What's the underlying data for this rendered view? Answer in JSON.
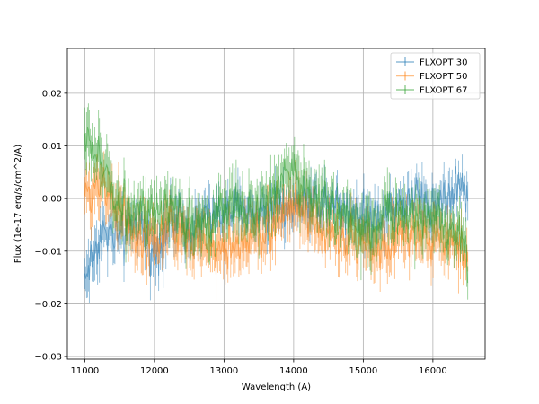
{
  "chart_data": {
    "type": "line",
    "title": "",
    "xlabel": "Wavelength (A)",
    "ylabel": "Flux (1e-17 erg/s/cm^2/A)",
    "xlim": [
      10750,
      16750
    ],
    "ylim": [
      -0.0305,
      0.0285
    ],
    "xticks": [
      11000,
      12000,
      13000,
      14000,
      15000,
      16000
    ],
    "yticks": [
      -0.03,
      -0.02,
      -0.01,
      0.0,
      0.01,
      0.02
    ],
    "xtick_labels": [
      "11000",
      "12000",
      "13000",
      "14000",
      "15000",
      "16000"
    ],
    "ytick_labels": [
      "−0.03",
      "−0.02",
      "−0.01",
      "0.00",
      "0.01",
      "0.02"
    ],
    "grid": true,
    "legend_position": "top-right",
    "errorbars": true,
    "series": [
      {
        "name": "FLXOPT 30",
        "color": "#1f77b4",
        "x": [
          11000,
          11250,
          11500,
          11750,
          12000,
          12250,
          12500,
          12750,
          13000,
          13250,
          13500,
          13750,
          14000,
          14250,
          14500,
          14750,
          15000,
          15250,
          15500,
          15750,
          16000,
          16250,
          16500
        ],
        "y": [
          -0.015,
          -0.006,
          -0.008,
          -0.005,
          -0.01,
          -0.004,
          -0.005,
          -0.004,
          -0.003,
          -0.002,
          -0.003,
          -0.001,
          -0.001,
          -0.001,
          0.0,
          -0.002,
          -0.003,
          -0.003,
          -0.001,
          0.0,
          -0.001,
          0.001,
          0.002
        ],
        "err": [
          0.005,
          0.005,
          0.004,
          0.004,
          0.005,
          0.004,
          0.004,
          0.004,
          0.004,
          0.004,
          0.004,
          0.004,
          0.004,
          0.004,
          0.004,
          0.004,
          0.004,
          0.004,
          0.004,
          0.004,
          0.004,
          0.004,
          0.004
        ]
      },
      {
        "name": "FLXOPT 50",
        "color": "#ff7f0e",
        "x": [
          11000,
          11250,
          11500,
          11750,
          12000,
          12250,
          12500,
          12750,
          13000,
          13250,
          13500,
          13750,
          14000,
          14250,
          14500,
          14750,
          15000,
          15250,
          15500,
          15750,
          16000,
          16250,
          16500
        ],
        "y": [
          0.0,
          0.004,
          -0.002,
          -0.008,
          -0.008,
          -0.005,
          -0.008,
          -0.009,
          -0.01,
          -0.008,
          -0.007,
          -0.005,
          0.0,
          -0.004,
          -0.007,
          -0.008,
          -0.009,
          -0.01,
          -0.007,
          -0.008,
          -0.007,
          -0.008,
          -0.01
        ],
        "err": [
          0.005,
          0.005,
          0.005,
          0.005,
          0.005,
          0.005,
          0.005,
          0.005,
          0.005,
          0.005,
          0.005,
          0.005,
          0.005,
          0.005,
          0.005,
          0.005,
          0.005,
          0.005,
          0.005,
          0.005,
          0.005,
          0.005,
          0.005
        ]
      },
      {
        "name": "FLXOPT 67",
        "color": "#2ca02c",
        "x": [
          11000,
          11250,
          11500,
          11750,
          12000,
          12250,
          12500,
          12750,
          13000,
          13250,
          13500,
          13750,
          14000,
          14250,
          14500,
          14750,
          15000,
          15250,
          15500,
          15750,
          16000,
          16250,
          16500
        ],
        "y": [
          0.012,
          0.006,
          -0.001,
          -0.002,
          -0.004,
          -0.003,
          -0.004,
          -0.005,
          -0.003,
          -0.001,
          -0.003,
          0.002,
          0.006,
          0.0,
          -0.002,
          -0.003,
          -0.006,
          -0.004,
          -0.003,
          -0.004,
          -0.003,
          -0.006,
          -0.01
        ],
        "err": [
          0.006,
          0.006,
          0.005,
          0.005,
          0.005,
          0.005,
          0.005,
          0.005,
          0.005,
          0.005,
          0.005,
          0.005,
          0.006,
          0.005,
          0.005,
          0.005,
          0.006,
          0.005,
          0.005,
          0.005,
          0.005,
          0.005,
          0.006
        ]
      }
    ]
  }
}
